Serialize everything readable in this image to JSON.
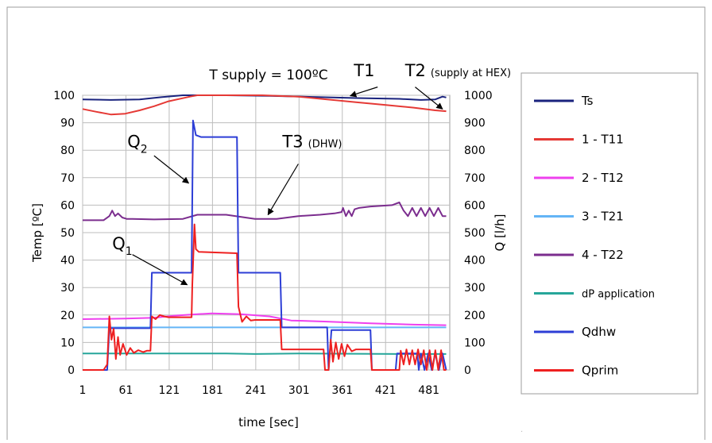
{
  "chart_data": {
    "type": "line",
    "title": "T supply = 100ºC",
    "xlabel": "time [sec]",
    "ylabel_left": "Temp [ºC]",
    "ylabel_right": "Q [l/h]",
    "xlim": [
      1,
      510
    ],
    "ylim_left": [
      0,
      100
    ],
    "ylim_right": [
      0,
      1000
    ],
    "x_ticks": [
      "1",
      "61",
      "121",
      "181",
      "241",
      "301",
      "361",
      "421",
      "481"
    ],
    "y_ticks_left": [
      "0",
      "10",
      "20",
      "30",
      "40",
      "50",
      "60",
      "70",
      "80",
      "90",
      "100"
    ],
    "y_ticks_right": [
      "0",
      "100",
      "200",
      "300",
      "400",
      "500",
      "600",
      "700",
      "800",
      "900",
      "1000"
    ],
    "grid": true,
    "legend_position": "right",
    "annotations": [
      {
        "text": "T1",
        "x": 377,
        "y": 107
      },
      {
        "text": "T2",
        "x": 448,
        "y": 107,
        "note": "(supply at HEX)"
      },
      {
        "text": "T3",
        "x": 278,
        "y": 81,
        "note": "(DHW)"
      },
      {
        "text": "Q",
        "sub": "2",
        "x": 63,
        "y": 81
      },
      {
        "text": "Q",
        "sub": "1",
        "x": 42,
        "y": 44
      }
    ],
    "series": [
      {
        "name": "Ts",
        "axis": "left",
        "color": "#1a237e",
        "points": [
          [
            1,
            98.5
          ],
          [
            40,
            98.3
          ],
          [
            80,
            98.5
          ],
          [
            110,
            99.3
          ],
          [
            140,
            100
          ],
          [
            200,
            100
          ],
          [
            260,
            99.8
          ],
          [
            320,
            99.4
          ],
          [
            380,
            99
          ],
          [
            440,
            98.7
          ],
          [
            470,
            98.3
          ],
          [
            490,
            98.5
          ],
          [
            500,
            99.5
          ],
          [
            505,
            99.2
          ]
        ]
      },
      {
        "name": "1 - T11",
        "axis": "left",
        "color": "#e53935",
        "points": [
          [
            1,
            95
          ],
          [
            20,
            94
          ],
          [
            40,
            93
          ],
          [
            60,
            93.3
          ],
          [
            80,
            94.5
          ],
          [
            100,
            96
          ],
          [
            120,
            97.8
          ],
          [
            150,
            99.5
          ],
          [
            160,
            100
          ],
          [
            250,
            100
          ],
          [
            300,
            99.5
          ],
          [
            340,
            98.5
          ],
          [
            380,
            97.5
          ],
          [
            420,
            96.5
          ],
          [
            460,
            95.5
          ],
          [
            490,
            94.5
          ],
          [
            505,
            94.2
          ]
        ]
      },
      {
        "name": "2 - T12",
        "axis": "left",
        "color": "#ee40ee",
        "points": [
          [
            1,
            18.5
          ],
          [
            60,
            18.7
          ],
          [
            100,
            19
          ],
          [
            130,
            19.8
          ],
          [
            160,
            20.3
          ],
          [
            180,
            20.6
          ],
          [
            220,
            20.3
          ],
          [
            260,
            19.5
          ],
          [
            290,
            18
          ],
          [
            340,
            17.6
          ],
          [
            400,
            17
          ],
          [
            460,
            16.5
          ],
          [
            505,
            16.3
          ]
        ]
      },
      {
        "name": "3 - T21",
        "axis": "left",
        "color": "#64b5f6",
        "points": [
          [
            1,
            15.5
          ],
          [
            505,
            15.5
          ]
        ]
      },
      {
        "name": "4 - T22",
        "axis": "left",
        "color": "#7b2d8e",
        "points": [
          [
            1,
            54.5
          ],
          [
            30,
            54.5
          ],
          [
            38,
            56
          ],
          [
            42,
            58
          ],
          [
            46,
            56
          ],
          [
            50,
            57
          ],
          [
            56,
            55.5
          ],
          [
            62,
            55
          ],
          [
            70,
            55
          ],
          [
            100,
            54.8
          ],
          [
            140,
            55
          ],
          [
            160,
            56.5
          ],
          [
            200,
            56.5
          ],
          [
            240,
            55
          ],
          [
            270,
            55
          ],
          [
            300,
            56
          ],
          [
            330,
            56.5
          ],
          [
            350,
            57
          ],
          [
            360,
            57.5
          ],
          [
            362,
            59
          ],
          [
            366,
            56
          ],
          [
            370,
            58
          ],
          [
            374,
            56
          ],
          [
            378,
            58.5
          ],
          [
            384,
            59
          ],
          [
            400,
            59.5
          ],
          [
            430,
            60
          ],
          [
            440,
            61
          ],
          [
            446,
            58
          ],
          [
            452,
            56
          ],
          [
            458,
            59
          ],
          [
            464,
            56
          ],
          [
            470,
            59
          ],
          [
            476,
            56
          ],
          [
            482,
            59
          ],
          [
            488,
            56
          ],
          [
            494,
            59
          ],
          [
            500,
            56
          ],
          [
            505,
            56
          ]
        ]
      },
      {
        "name": "dP application",
        "axis": "left",
        "color": "#26a69a",
        "points": [
          [
            1,
            6
          ],
          [
            160,
            6
          ],
          [
            200,
            6
          ],
          [
            240,
            5.8
          ],
          [
            300,
            6
          ],
          [
            380,
            5.9
          ],
          [
            440,
            5.8
          ],
          [
            505,
            5.8
          ]
        ]
      },
      {
        "name": "Qdhw",
        "axis": "right",
        "color": "#2d3ed6",
        "points": [
          [
            1,
            0
          ],
          [
            35,
            0
          ],
          [
            38,
            152
          ],
          [
            95,
            152
          ],
          [
            97,
            354
          ],
          [
            152,
            354
          ],
          [
            154,
            908
          ],
          [
            158,
            855
          ],
          [
            165,
            848
          ],
          [
            200,
            848
          ],
          [
            215,
            848
          ],
          [
            217,
            354
          ],
          [
            275,
            354
          ],
          [
            277,
            155
          ],
          [
            340,
            155
          ],
          [
            342,
            0
          ],
          [
            346,
            145
          ],
          [
            400,
            145
          ],
          [
            402,
            0
          ],
          [
            435,
            0
          ],
          [
            437,
            60
          ],
          [
            465,
            60
          ],
          [
            467,
            0
          ],
          [
            470,
            60
          ],
          [
            475,
            0
          ],
          [
            480,
            60
          ],
          [
            485,
            0
          ],
          [
            490,
            60
          ],
          [
            495,
            0
          ],
          [
            500,
            60
          ],
          [
            505,
            0
          ]
        ]
      },
      {
        "name": "Qprim",
        "axis": "right",
        "color": "#ee2020",
        "points": [
          [
            1,
            0
          ],
          [
            30,
            0
          ],
          [
            35,
            20
          ],
          [
            38,
            195
          ],
          [
            41,
            110
          ],
          [
            44,
            150
          ],
          [
            47,
            40
          ],
          [
            50,
            120
          ],
          [
            53,
            55
          ],
          [
            57,
            95
          ],
          [
            62,
            55
          ],
          [
            67,
            80
          ],
          [
            72,
            62
          ],
          [
            78,
            72
          ],
          [
            85,
            65
          ],
          [
            90,
            70
          ],
          [
            95,
            70
          ],
          [
            97,
            195
          ],
          [
            102,
            185
          ],
          [
            108,
            200
          ],
          [
            114,
            195
          ],
          [
            120,
            192
          ],
          [
            152,
            192
          ],
          [
            153,
            310
          ],
          [
            156,
            530
          ],
          [
            158,
            440
          ],
          [
            162,
            430
          ],
          [
            215,
            425
          ],
          [
            217,
            230
          ],
          [
            222,
            175
          ],
          [
            228,
            195
          ],
          [
            234,
            180
          ],
          [
            240,
            182
          ],
          [
            275,
            182
          ],
          [
            277,
            75
          ],
          [
            335,
            75
          ],
          [
            337,
            0
          ],
          [
            342,
            0
          ],
          [
            345,
            110
          ],
          [
            348,
            30
          ],
          [
            352,
            100
          ],
          [
            356,
            40
          ],
          [
            360,
            95
          ],
          [
            364,
            50
          ],
          [
            368,
            92
          ],
          [
            374,
            68
          ],
          [
            380,
            75
          ],
          [
            400,
            75
          ],
          [
            402,
            0
          ],
          [
            440,
            0
          ],
          [
            442,
            70
          ],
          [
            446,
            20
          ],
          [
            450,
            75
          ],
          [
            454,
            20
          ],
          [
            458,
            72
          ],
          [
            462,
            20
          ],
          [
            466,
            75
          ],
          [
            470,
            20
          ],
          [
            474,
            72
          ],
          [
            478,
            0
          ],
          [
            482,
            72
          ],
          [
            486,
            0
          ],
          [
            490,
            72
          ],
          [
            494,
            0
          ],
          [
            498,
            72
          ],
          [
            502,
            0
          ],
          [
            505,
            0
          ]
        ]
      }
    ]
  }
}
